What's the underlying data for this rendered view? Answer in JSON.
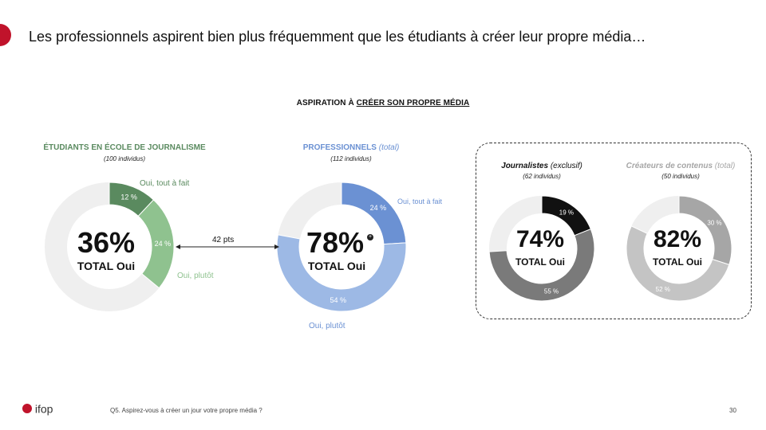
{
  "page": {
    "title": "Les professionnels aspirent bien plus fréquemment que les étudiants à créer leur propre média…",
    "subtitle_prefix": "ASPIRATION À ",
    "subtitle_underlined": "CRÉER SON PROPRE MÉDIA",
    "footer_question": "Q5. Aspirez-vous à créer un jour votre propre média ?",
    "page_number": "30",
    "logo_text": "ifop"
  },
  "groups": {
    "students": {
      "header": "ÉTUDIANTS EN ÉCOLE DE JOURNALISME",
      "count": "(100 individus)"
    },
    "pros": {
      "header": "PROFESSIONNELS",
      "header_note": "(total)",
      "count": "(112 individus)"
    },
    "journalists": {
      "header": "Journalistes",
      "header_note": "(exclusif)",
      "count": "(62 individus)"
    },
    "creators": {
      "header": "Créateurs de contenus",
      "header_note": "(total)",
      "count": "(50 individus)"
    }
  },
  "gap_label": "42 pts",
  "chart_data": [
    {
      "type": "pie",
      "id": "students",
      "center_value": "36%",
      "center_label": "TOTAL Oui",
      "slices": [
        {
          "label": "Oui, tout à fait",
          "value": 12,
          "value_label": "12 %",
          "color": "#5a8a5f"
        },
        {
          "label": "Oui, plutôt",
          "value": 24,
          "value_label": "24 %",
          "color": "#8fc28f"
        }
      ],
      "remainder_color": "#efefef",
      "label_colors": {
        "Oui, tout à fait": "#5a8a5f",
        "Oui, plutôt": "#8fc28f"
      }
    },
    {
      "type": "pie",
      "id": "pros",
      "center_value": "78%",
      "center_label": "TOTAL Oui",
      "slices": [
        {
          "label": "Oui, tout à fait",
          "value": 24,
          "value_label": "24 %",
          "color": "#6b91d3"
        },
        {
          "label": "Oui, plutôt",
          "value": 54,
          "value_label": "54 %",
          "color": "#9db9e5"
        }
      ],
      "remainder_color": "#efefef",
      "label_colors": {
        "Oui, tout à fait": "#6b91d3",
        "Oui, plutôt": "#6b91d3"
      }
    },
    {
      "type": "pie",
      "id": "journalists",
      "center_value": "74%",
      "center_label": "TOTAL Oui",
      "slices": [
        {
          "value": 19,
          "value_label": "19 %",
          "color": "#111111"
        },
        {
          "value": 55,
          "value_label": "55 %",
          "color": "#7a7a7a"
        }
      ],
      "remainder_color": "#efefef"
    },
    {
      "type": "pie",
      "id": "creators",
      "center_value": "82%",
      "center_label": "TOTAL Oui",
      "slices": [
        {
          "value": 30,
          "value_label": "30 %",
          "color": "#a6a6a6"
        },
        {
          "value": 52,
          "value_label": "52 %",
          "color": "#c4c4c4"
        }
      ],
      "remainder_color": "#efefef"
    }
  ]
}
